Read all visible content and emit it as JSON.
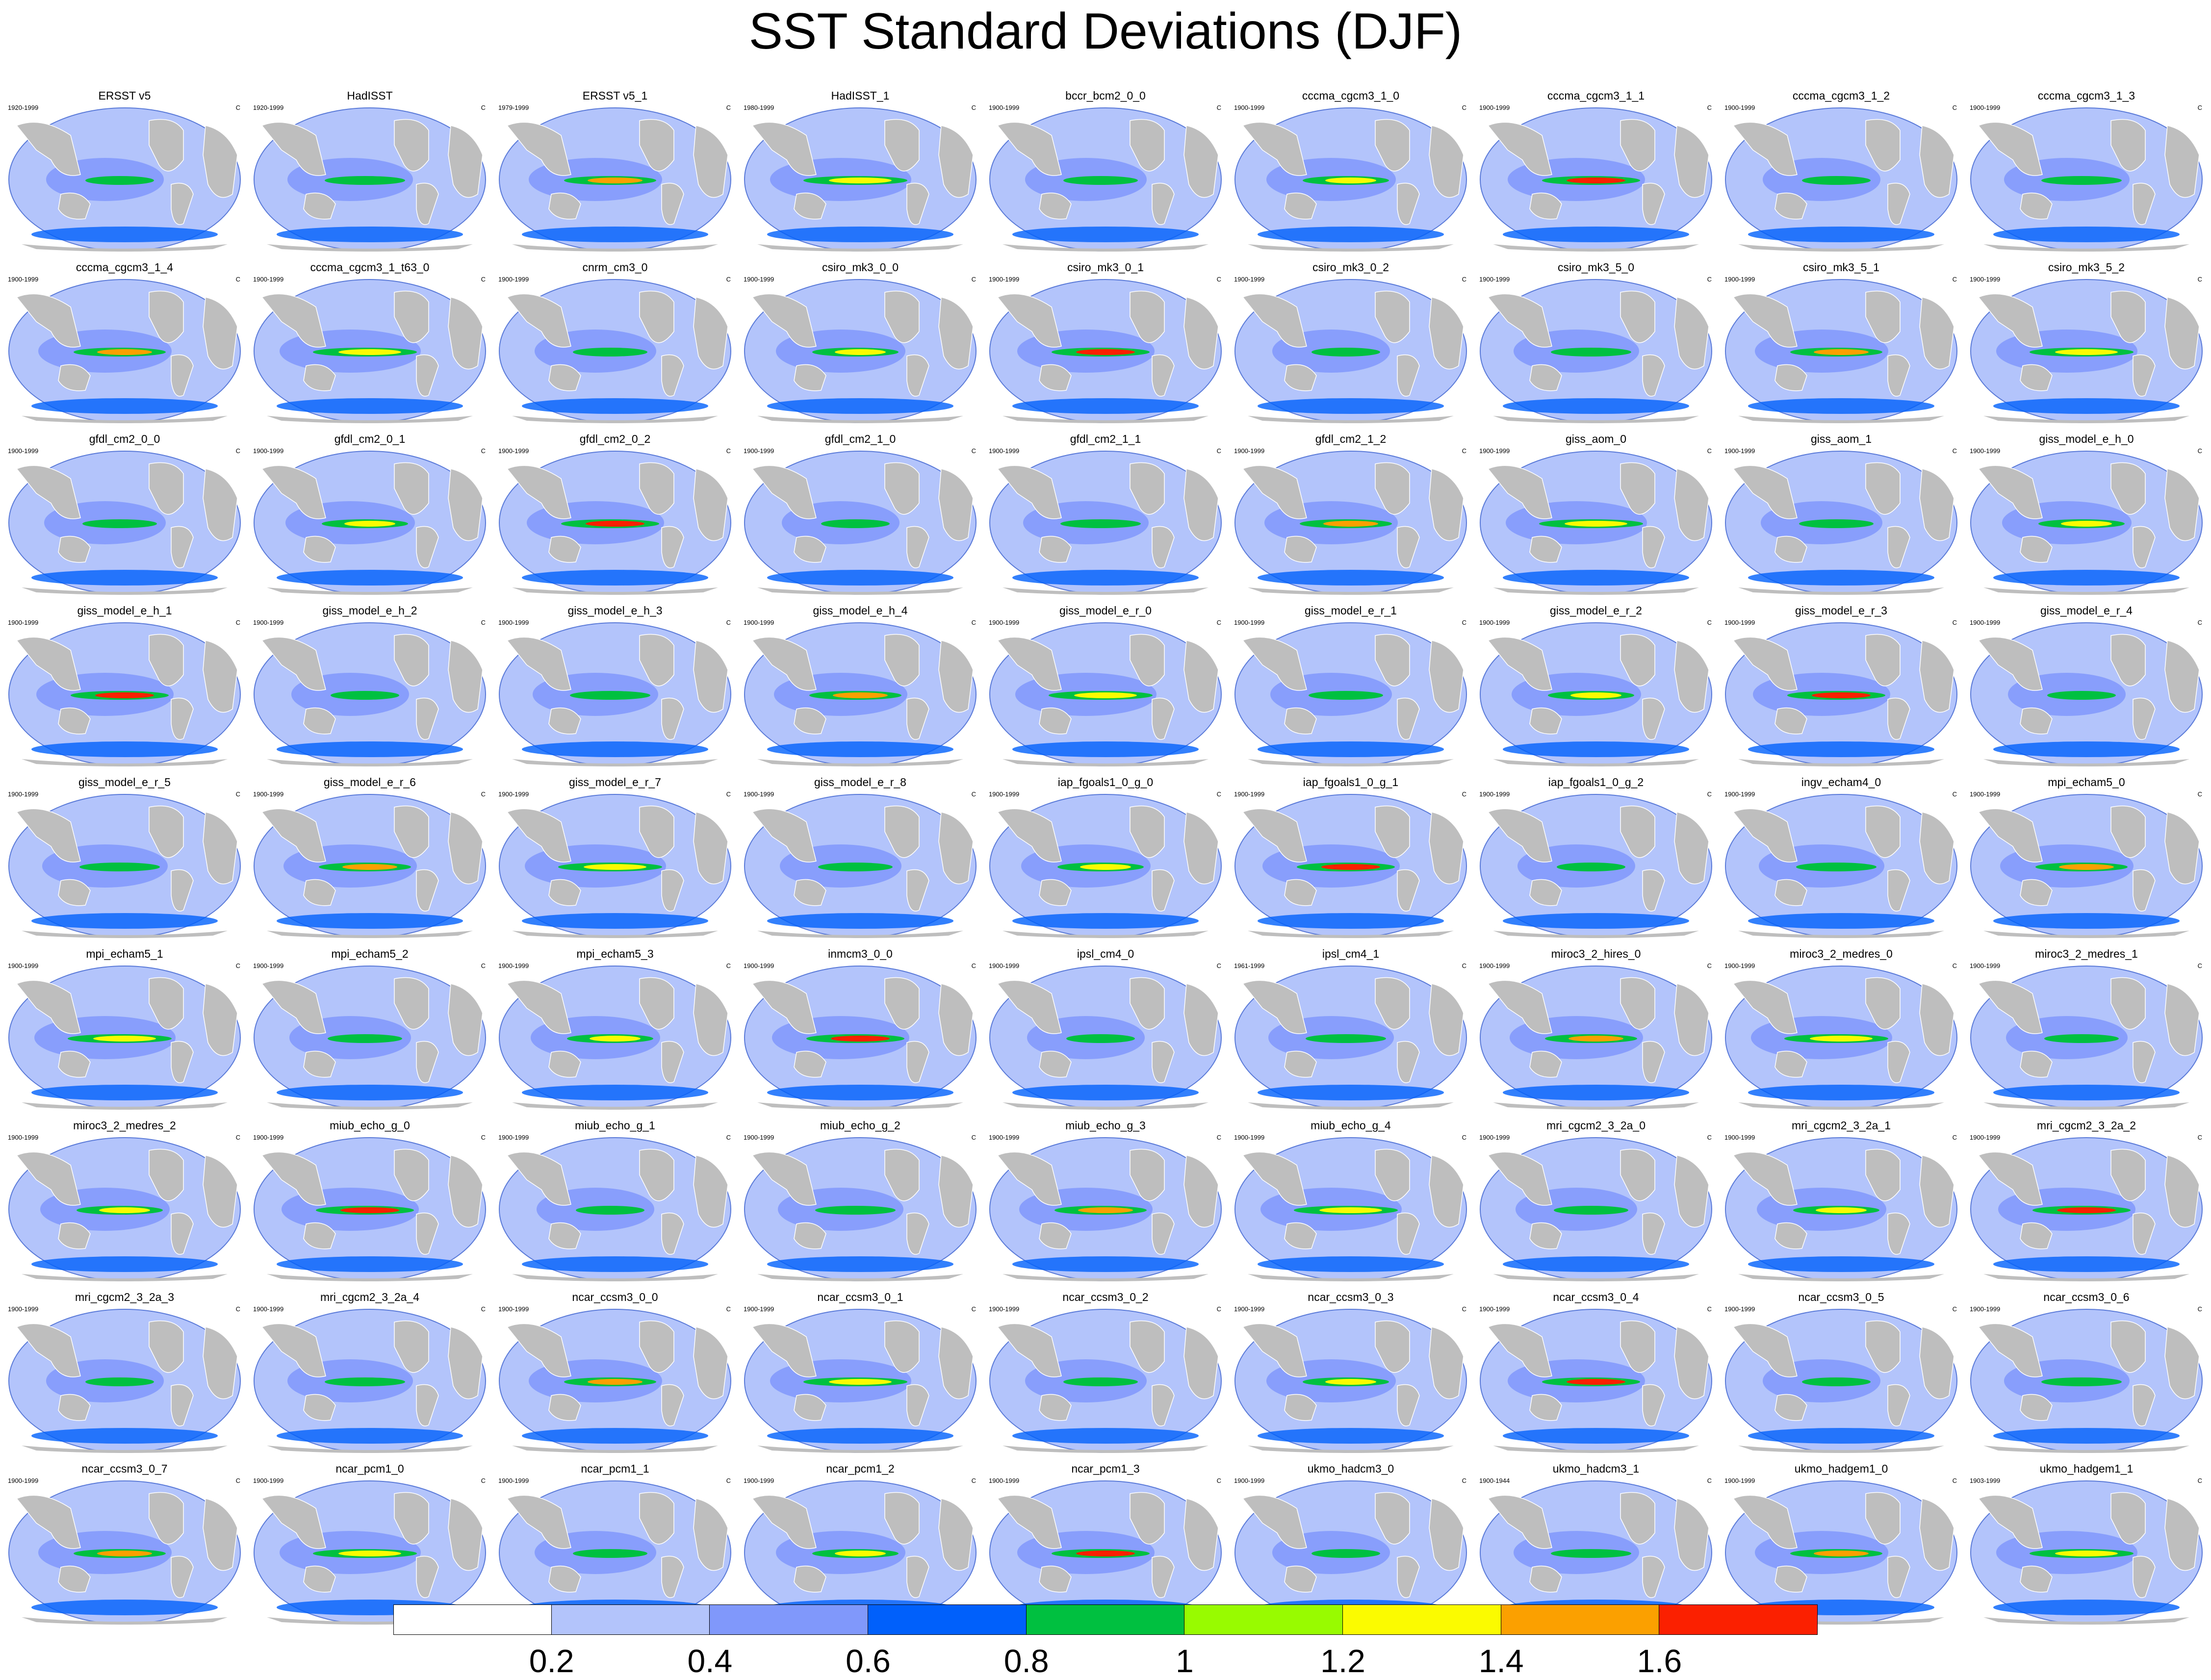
{
  "title": "SST Standard Deviations (DJF)",
  "unit_label": "C",
  "panels": [
    {
      "name": "ERSST v5",
      "period": "1920-1999"
    },
    {
      "name": "HadISST",
      "period": "1920-1999"
    },
    {
      "name": "ERSST v5_1",
      "period": "1979-1999"
    },
    {
      "name": "HadISST_1",
      "period": "1980-1999"
    },
    {
      "name": "bccr_bcm2_0_0",
      "period": "1900-1999"
    },
    {
      "name": "cccma_cgcm3_1_0",
      "period": "1900-1999"
    },
    {
      "name": "cccma_cgcm3_1_1",
      "period": "1900-1999"
    },
    {
      "name": "cccma_cgcm3_1_2",
      "period": "1900-1999"
    },
    {
      "name": "cccma_cgcm3_1_3",
      "period": "1900-1999"
    },
    {
      "name": "cccma_cgcm3_1_4",
      "period": "1900-1999"
    },
    {
      "name": "cccma_cgcm3_1_t63_0",
      "period": "1900-1999"
    },
    {
      "name": "cnrm_cm3_0",
      "period": "1900-1999"
    },
    {
      "name": "csiro_mk3_0_0",
      "period": "1900-1999"
    },
    {
      "name": "csiro_mk3_0_1",
      "period": "1900-1999"
    },
    {
      "name": "csiro_mk3_0_2",
      "period": "1900-1999"
    },
    {
      "name": "csiro_mk3_5_0",
      "period": "1900-1999"
    },
    {
      "name": "csiro_mk3_5_1",
      "period": "1900-1999"
    },
    {
      "name": "csiro_mk3_5_2",
      "period": "1900-1999"
    },
    {
      "name": "gfdl_cm2_0_0",
      "period": "1900-1999"
    },
    {
      "name": "gfdl_cm2_0_1",
      "period": "1900-1999"
    },
    {
      "name": "gfdl_cm2_0_2",
      "period": "1900-1999"
    },
    {
      "name": "gfdl_cm2_1_0",
      "period": "1900-1999"
    },
    {
      "name": "gfdl_cm2_1_1",
      "period": "1900-1999"
    },
    {
      "name": "gfdl_cm2_1_2",
      "period": "1900-1999"
    },
    {
      "name": "giss_aom_0",
      "period": "1900-1999"
    },
    {
      "name": "giss_aom_1",
      "period": "1900-1999"
    },
    {
      "name": "giss_model_e_h_0",
      "period": "1900-1999"
    },
    {
      "name": "giss_model_e_h_1",
      "period": "1900-1999"
    },
    {
      "name": "giss_model_e_h_2",
      "period": "1900-1999"
    },
    {
      "name": "giss_model_e_h_3",
      "period": "1900-1999"
    },
    {
      "name": "giss_model_e_h_4",
      "period": "1900-1999"
    },
    {
      "name": "giss_model_e_r_0",
      "period": "1900-1999"
    },
    {
      "name": "giss_model_e_r_1",
      "period": "1900-1999"
    },
    {
      "name": "giss_model_e_r_2",
      "period": "1900-1999"
    },
    {
      "name": "giss_model_e_r_3",
      "period": "1900-1999"
    },
    {
      "name": "giss_model_e_r_4",
      "period": "1900-1999"
    },
    {
      "name": "giss_model_e_r_5",
      "period": "1900-1999"
    },
    {
      "name": "giss_model_e_r_6",
      "period": "1900-1999"
    },
    {
      "name": "giss_model_e_r_7",
      "period": "1900-1999"
    },
    {
      "name": "giss_model_e_r_8",
      "period": "1900-1999"
    },
    {
      "name": "iap_fgoals1_0_g_0",
      "period": "1900-1999"
    },
    {
      "name": "iap_fgoals1_0_g_1",
      "period": "1900-1999"
    },
    {
      "name": "iap_fgoals1_0_g_2",
      "period": "1900-1999"
    },
    {
      "name": "ingv_echam4_0",
      "period": "1900-1999"
    },
    {
      "name": "mpi_echam5_0",
      "period": "1900-1999"
    },
    {
      "name": "mpi_echam5_1",
      "period": "1900-1999"
    },
    {
      "name": "mpi_echam5_2",
      "period": "1900-1999"
    },
    {
      "name": "mpi_echam5_3",
      "period": "1900-1999"
    },
    {
      "name": "inmcm3_0_0",
      "period": "1900-1999"
    },
    {
      "name": "ipsl_cm4_0",
      "period": "1900-1999"
    },
    {
      "name": "ipsl_cm4_1",
      "period": "1961-1999"
    },
    {
      "name": "miroc3_2_hires_0",
      "period": "1900-1999"
    },
    {
      "name": "miroc3_2_medres_0",
      "period": "1900-1999"
    },
    {
      "name": "miroc3_2_medres_1",
      "period": "1900-1999"
    },
    {
      "name": "miroc3_2_medres_2",
      "period": "1900-1999"
    },
    {
      "name": "miub_echo_g_0",
      "period": "1900-1999"
    },
    {
      "name": "miub_echo_g_1",
      "period": "1900-1999"
    },
    {
      "name": "miub_echo_g_2",
      "period": "1900-1999"
    },
    {
      "name": "miub_echo_g_3",
      "period": "1900-1999"
    },
    {
      "name": "miub_echo_g_4",
      "period": "1900-1999"
    },
    {
      "name": "mri_cgcm2_3_2a_0",
      "period": "1900-1999"
    },
    {
      "name": "mri_cgcm2_3_2a_1",
      "period": "1900-1999"
    },
    {
      "name": "mri_cgcm2_3_2a_2",
      "period": "1900-1999"
    },
    {
      "name": "mri_cgcm2_3_2a_3",
      "period": "1900-1999"
    },
    {
      "name": "mri_cgcm2_3_2a_4",
      "period": "1900-1999"
    },
    {
      "name": "ncar_ccsm3_0_0",
      "period": "1900-1999"
    },
    {
      "name": "ncar_ccsm3_0_1",
      "period": "1900-1999"
    },
    {
      "name": "ncar_ccsm3_0_2",
      "period": "1900-1999"
    },
    {
      "name": "ncar_ccsm3_0_3",
      "period": "1900-1999"
    },
    {
      "name": "ncar_ccsm3_0_4",
      "period": "1900-1999"
    },
    {
      "name": "ncar_ccsm3_0_5",
      "period": "1900-1999"
    },
    {
      "name": "ncar_ccsm3_0_6",
      "period": "1900-1999"
    },
    {
      "name": "ncar_ccsm3_0_7",
      "period": "1900-1999"
    },
    {
      "name": "ncar_pcm1_0",
      "period": "1900-1999"
    },
    {
      "name": "ncar_pcm1_1",
      "period": "1900-1999"
    },
    {
      "name": "ncar_pcm1_2",
      "period": "1900-1999"
    },
    {
      "name": "ncar_pcm1_3",
      "period": "1900-1999"
    },
    {
      "name": "ukmo_hadcm3_0",
      "period": "1900-1999"
    },
    {
      "name": "ukmo_hadcm3_1",
      "period": "1900-1944"
    },
    {
      "name": "ukmo_hadgem1_0",
      "period": "1900-1999"
    },
    {
      "name": "ukmo_hadgem1_1",
      "period": "1903-1999"
    }
  ],
  "colorbar": {
    "colors": [
      "#ffffff",
      "#b3c4fb",
      "#8098fb",
      "#0060fb",
      "#00c040",
      "#98fb00",
      "#fbfb00",
      "#fba000",
      "#fb2000"
    ],
    "labels": [
      "0.2",
      "0.4",
      "0.6",
      "0.8",
      "1",
      "1.2",
      "1.4",
      "1.6"
    ]
  },
  "map_colors": {
    "ocean_base": "#b3c4fb",
    "land": "#bebebe"
  }
}
